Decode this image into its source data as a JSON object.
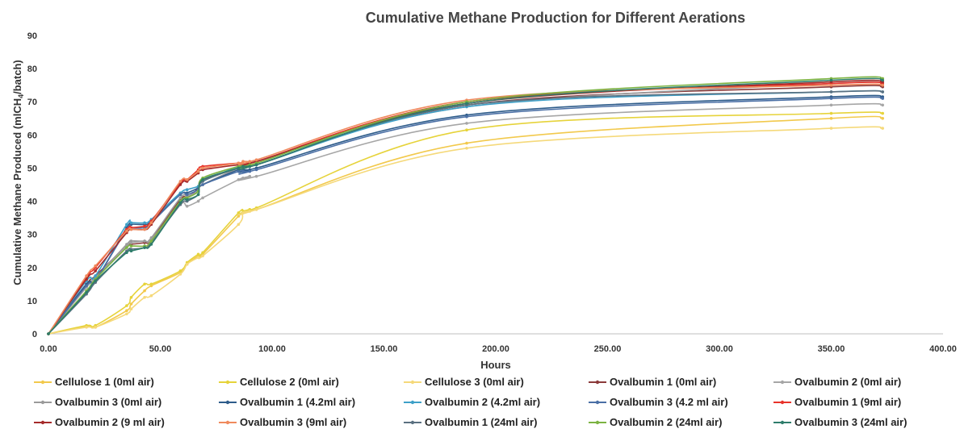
{
  "chart_data": {
    "type": "line",
    "title": "Cumulative Methane Production for Different Aerations",
    "xlabel": "Hours",
    "ylabel": "Cumulative Methane  Produced (mlCH",
    "ylabel_sub": "4",
    "ylabel_tail": "/batch)",
    "xlim": [
      0,
      400
    ],
    "ylim": [
      0,
      90
    ],
    "x_ticks": [
      "0.00",
      "50.00",
      "100.00",
      "150.00",
      "200.00",
      "250.00",
      "300.00",
      "350.00",
      "400.00"
    ],
    "y_ticks": [
      "0",
      "10",
      "20",
      "30",
      "40",
      "50",
      "60",
      "70",
      "80",
      "90"
    ],
    "x": [
      0,
      17,
      21,
      35,
      37,
      43,
      46,
      59,
      62,
      67,
      69,
      85,
      87,
      90,
      93,
      187,
      350,
      373
    ],
    "series": [
      {
        "name": "Cellulose 1 (0ml air)",
        "color": "#f2c94c",
        "values": [
          0,
          2.2,
          2.0,
          7.0,
          9.0,
          13.0,
          14.5,
          18.5,
          21.0,
          23.5,
          24.0,
          35.5,
          36.5,
          37.0,
          37.5,
          57.5,
          65.0,
          65.0
        ]
      },
      {
        "name": "Cellulose 2 (0ml air)",
        "color": "#e6d33a",
        "values": [
          0,
          2.5,
          2.5,
          8.5,
          11.0,
          15.0,
          15.0,
          19.0,
          21.5,
          24.0,
          24.5,
          36.5,
          37.0,
          37.5,
          38.0,
          61.5,
          66.5,
          66.5
        ]
      },
      {
        "name": "Cellulose 3 (0ml air)",
        "color": "#f5d97a",
        "values": [
          0,
          2.0,
          2.0,
          6.0,
          7.5,
          11.0,
          11.5,
          18.0,
          21.0,
          23.0,
          23.5,
          33.0,
          36.5,
          37.0,
          37.5,
          56.0,
          62.0,
          62.0
        ]
      },
      {
        "name": "Ovalbumin 1 (0ml air)",
        "color": "#8b3a3a",
        "values": [
          0,
          15.0,
          17.5,
          26.5,
          27.0,
          27.5,
          28.5,
          40.5,
          41.0,
          44.0,
          46.5,
          50.0,
          50.5,
          50.5,
          51.0,
          69.0,
          74.5,
          74.5
        ]
      },
      {
        "name": "Ovalbumin 2 (0ml air)",
        "color": "#a6a6a6",
        "values": [
          0,
          14.0,
          16.5,
          26.5,
          27.5,
          28.0,
          28.5,
          39.0,
          38.5,
          40.0,
          41.0,
          46.5,
          47.0,
          47.5,
          47.5,
          63.5,
          69.0,
          69.0
        ]
      },
      {
        "name": "Ovalbumin 3 (0ml air)",
        "color": "#9a9a9a",
        "values": [
          0,
          14.5,
          17.0,
          27.0,
          28.0,
          28.0,
          29.0,
          41.0,
          41.5,
          43.0,
          45.0,
          50.0,
          50.5,
          51.0,
          52.0,
          68.5,
          75.5,
          75.5
        ]
      },
      {
        "name": "Ovalbumin 1 (4.2ml air)",
        "color": "#2e5c8a",
        "values": [
          0,
          15.0,
          16.0,
          32.0,
          33.0,
          33.0,
          34.0,
          42.0,
          42.5,
          44.0,
          45.0,
          49.5,
          49.5,
          49.5,
          50.0,
          66.0,
          71.5,
          71.5
        ]
      },
      {
        "name": "Ovalbumin 2 (4.2ml air)",
        "color": "#3da0c8",
        "values": [
          0,
          16.0,
          17.5,
          33.0,
          33.5,
          33.5,
          34.5,
          42.5,
          43.5,
          44.5,
          46.0,
          50.5,
          50.5,
          50.5,
          51.0,
          68.5,
          73.0,
          73.0
        ]
      },
      {
        "name": "Ovalbumin 3 (4.2 ml air)",
        "color": "#4a6fa5",
        "values": [
          0,
          14.5,
          16.0,
          31.5,
          32.0,
          32.0,
          33.5,
          42.0,
          42.0,
          43.5,
          45.0,
          49.0,
          49.0,
          49.0,
          49.5,
          65.5,
          71.0,
          71.0
        ]
      },
      {
        "name": "Ovalbumin 1 (9ml air)",
        "color": "#e8332a",
        "values": [
          0,
          17.0,
          20.0,
          31.5,
          32.0,
          32.5,
          34.0,
          45.5,
          46.5,
          49.5,
          50.5,
          51.5,
          51.5,
          51.5,
          52.0,
          70.0,
          75.5,
          75.5
        ]
      },
      {
        "name": "Ovalbumin 2 (9 ml air)",
        "color": "#a52a2a",
        "values": [
          0,
          16.5,
          19.0,
          30.5,
          31.5,
          31.5,
          33.0,
          45.0,
          46.0,
          48.5,
          49.5,
          51.0,
          51.0,
          51.5,
          52.0,
          69.5,
          76.0,
          76.0
        ]
      },
      {
        "name": "Ovalbumin 3 (9ml air)",
        "color": "#f08a5d",
        "values": [
          0,
          17.5,
          20.5,
          31.0,
          31.5,
          31.5,
          33.5,
          46.0,
          46.5,
          49.0,
          50.0,
          51.5,
          52.0,
          52.0,
          52.5,
          70.5,
          75.0,
          75.0
        ]
      },
      {
        "name": "Ovalbumin 1 (24ml air)",
        "color": "#5a7080",
        "values": [
          0,
          12.0,
          15.5,
          25.0,
          25.5,
          26.0,
          27.5,
          39.0,
          40.0,
          42.0,
          46.0,
          50.0,
          50.0,
          50.5,
          51.0,
          69.0,
          73.0,
          73.0
        ]
      },
      {
        "name": "Ovalbumin 2 (24ml air)",
        "color": "#7cb342",
        "values": [
          0,
          13.0,
          16.5,
          26.0,
          26.5,
          26.5,
          28.0,
          40.0,
          41.0,
          43.0,
          47.0,
          50.5,
          50.5,
          51.0,
          51.5,
          70.0,
          77.0,
          77.0
        ]
      },
      {
        "name": "Ovalbumin 3 (24ml air)",
        "color": "#2e7d6b",
        "values": [
          0,
          12.5,
          16.0,
          24.5,
          25.0,
          26.0,
          27.0,
          39.5,
          40.5,
          42.0,
          46.5,
          50.0,
          50.5,
          50.5,
          51.0,
          69.5,
          76.5,
          76.5
        ]
      }
    ],
    "grid": false,
    "legend": "bottom"
  }
}
